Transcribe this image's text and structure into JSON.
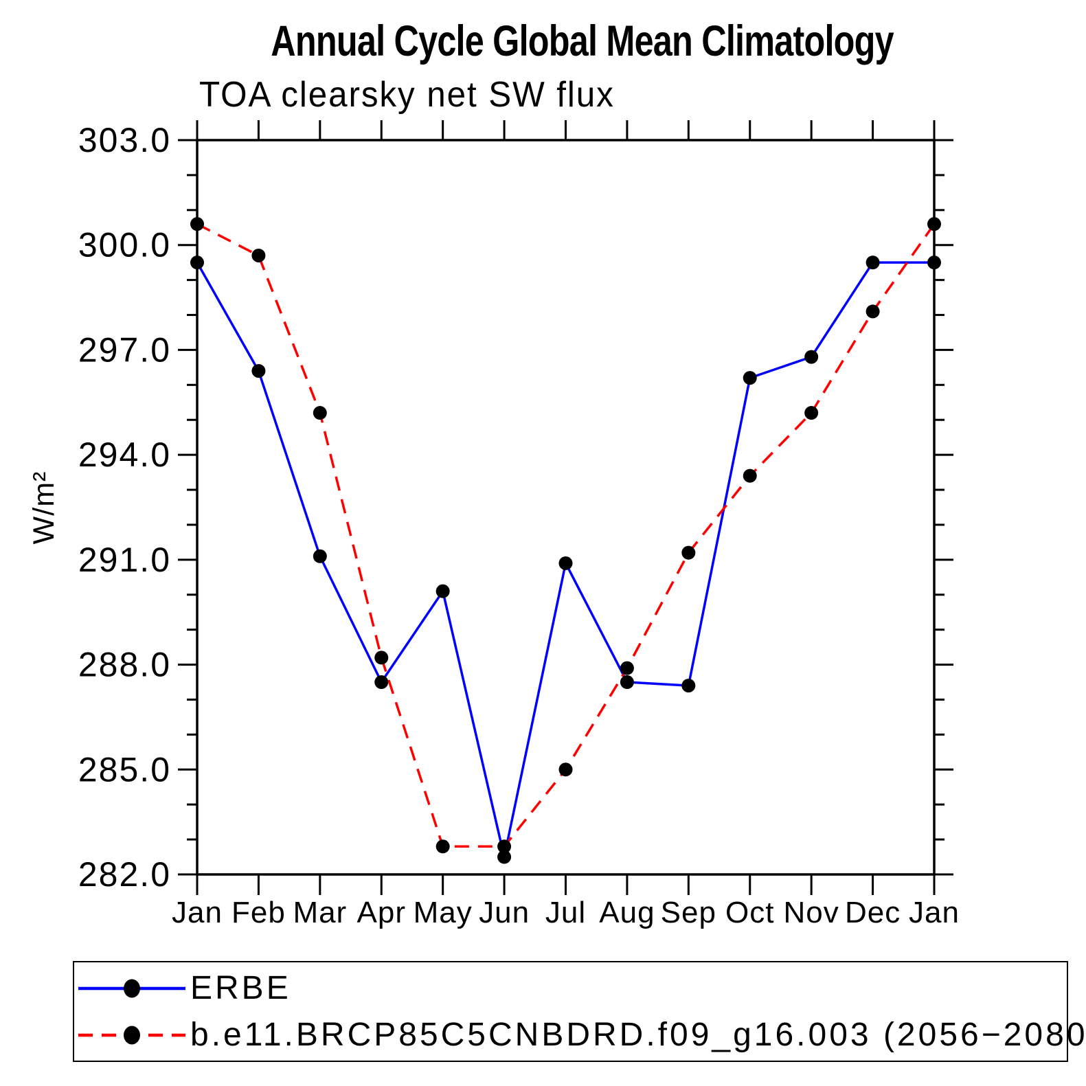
{
  "chart_data": {
    "type": "line",
    "title": "Annual Cycle Global Mean Climatology",
    "subtitle": "TOA clearsky net SW flux",
    "ylabel": "W/m²",
    "x_categories": [
      "Jan",
      "Feb",
      "Mar",
      "Apr",
      "May",
      "Jun",
      "Jul",
      "Aug",
      "Sep",
      "Oct",
      "Nov",
      "Dec",
      "Jan"
    ],
    "ylim": [
      282.0,
      303.0
    ],
    "y_major_ticks": [
      282.0,
      285.0,
      288.0,
      291.0,
      294.0,
      297.0,
      300.0,
      303.0
    ],
    "y_minor_step": 1.0,
    "y_tick_decimals": 1,
    "grid": false,
    "frame_color": "#000000",
    "marker_color": "#000000",
    "legend_position": "bottom-box",
    "series": [
      {
        "name": "ERBE",
        "color": "#0000ff",
        "line_style": "solid",
        "marker": "filled-circle",
        "values": [
          299.5,
          296.4,
          291.1,
          287.5,
          290.1,
          282.5,
          290.9,
          287.5,
          287.4,
          296.2,
          296.8,
          299.5,
          299.5
        ]
      },
      {
        "name": "b.e11.BRCP85C5CNBDRD.f09_g16.003 (2056−2080)",
        "color": "#ff0000",
        "line_style": "dashed",
        "marker": "filled-circle",
        "values": [
          300.6,
          299.7,
          295.2,
          288.2,
          282.8,
          282.8,
          285.0,
          287.9,
          291.2,
          293.4,
          295.2,
          298.1,
          300.6
        ]
      }
    ]
  }
}
